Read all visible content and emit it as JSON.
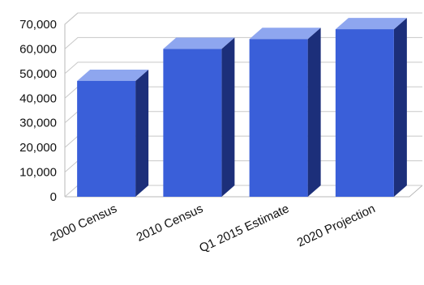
{
  "chart_data": {
    "type": "bar",
    "title": "",
    "xlabel": "",
    "ylabel": "",
    "categories": [
      "2000 Census",
      "2010 Census",
      "Q1 2015 Estimate",
      "2020 Projection"
    ],
    "values": [
      47000,
      60000,
      64000,
      68000
    ],
    "ylim": [
      0,
      70000
    ],
    "yticks": [
      "0",
      "10,000",
      "20,000",
      "30,000",
      "40,000",
      "50,000",
      "60,000",
      "70,000"
    ],
    "grid": true,
    "legend": "none",
    "style": "3d",
    "colors": {
      "front": "#3a5fd9",
      "top": "#8ea6ef",
      "side": "#1c2f7a"
    }
  }
}
